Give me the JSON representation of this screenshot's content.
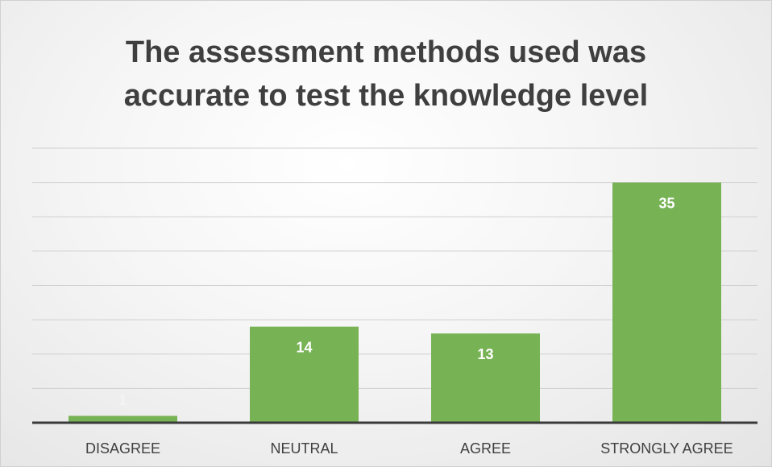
{
  "chart_data": {
    "type": "bar",
    "title": "The assessment methods used was accurate to test the knowledge level",
    "categories": [
      "DISAGREE",
      "NEUTRAL",
      "AGREE",
      "STRONGLY AGREE"
    ],
    "values": [
      1,
      14,
      13,
      35
    ],
    "color": "#77b255",
    "ylim": [
      0,
      40
    ],
    "yticks": [
      0,
      5,
      10,
      15,
      20,
      25,
      30,
      35,
      40
    ],
    "grid": true
  }
}
